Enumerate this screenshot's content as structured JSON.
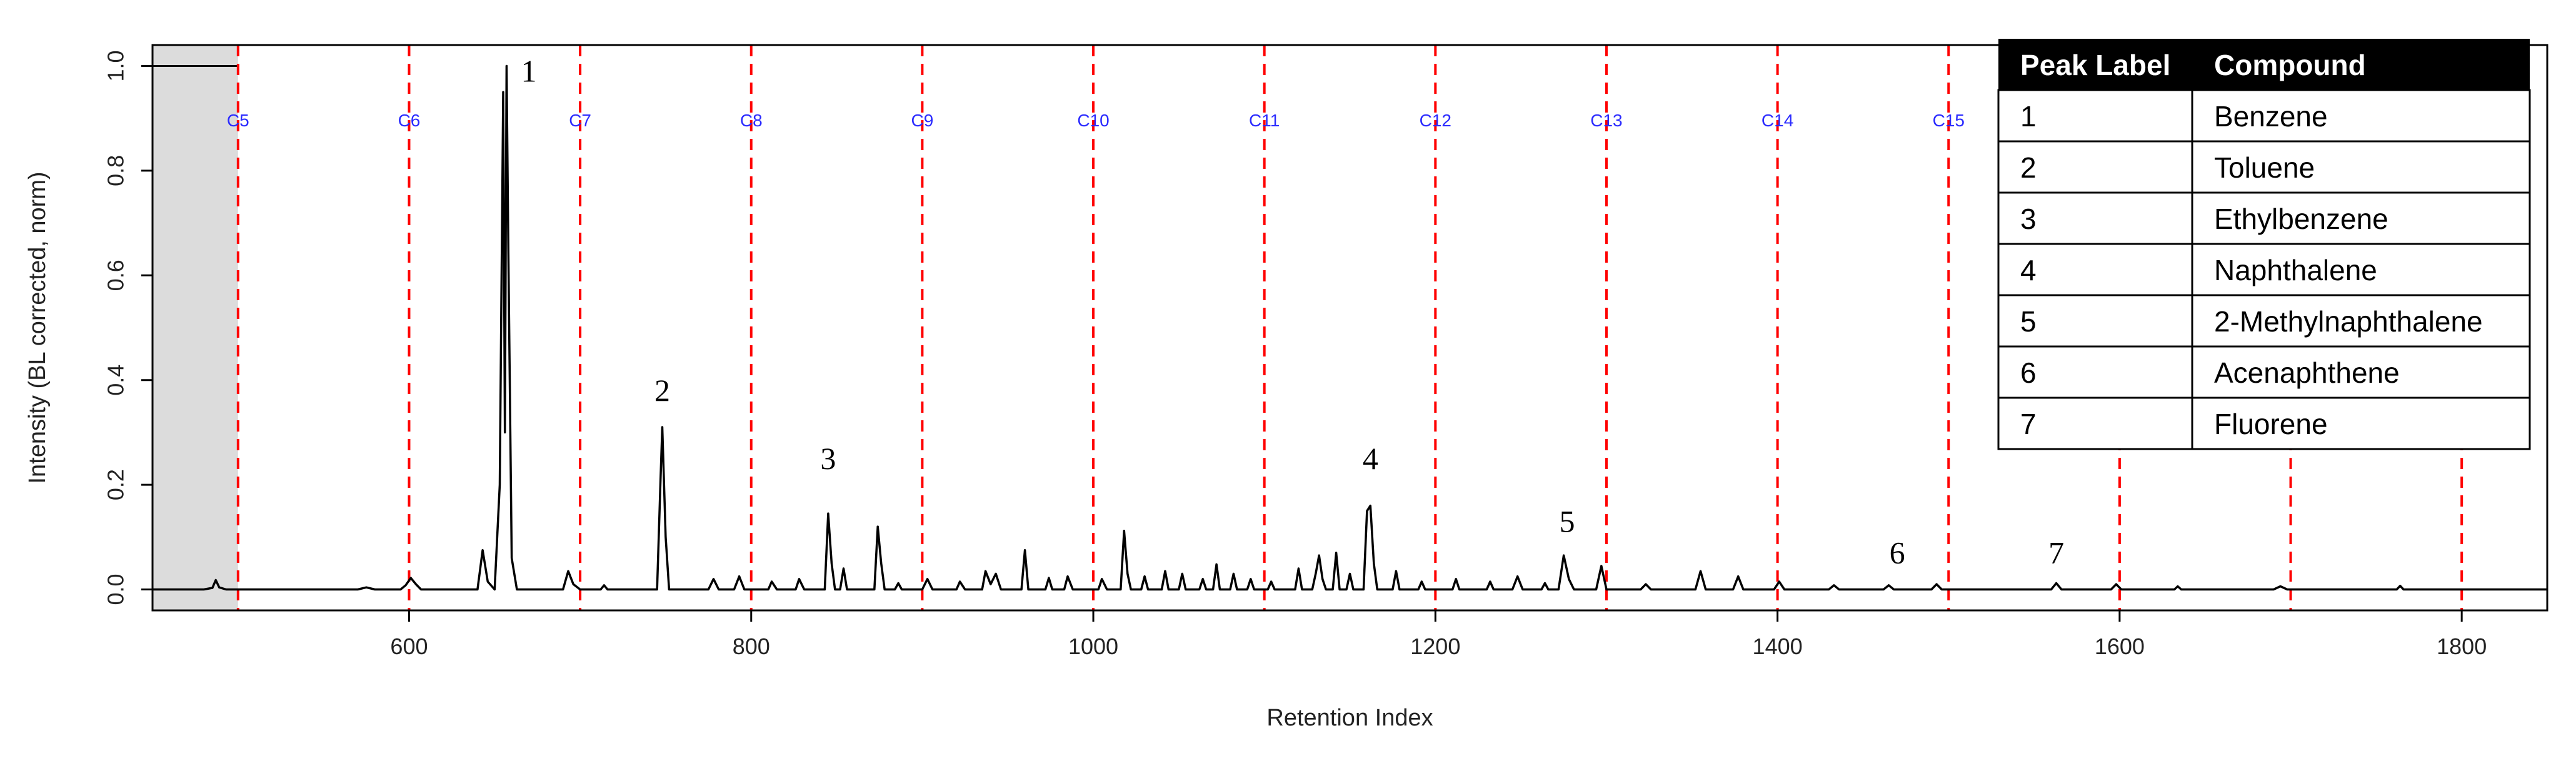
{
  "chart_data": {
    "type": "line",
    "title": "",
    "xlabel": "Retention Index",
    "ylabel": "Intensity (BL corrected, norm)",
    "xlim": [
      450,
      1850
    ],
    "ylim": [
      -0.04,
      1.04
    ],
    "x_ticks": [
      "600",
      "800",
      "1000",
      "1200",
      "1400",
      "1600",
      "1800"
    ],
    "x_tick_values": [
      600,
      800,
      1000,
      1200,
      1400,
      1600,
      1800
    ],
    "y_ticks": [
      "0.0",
      "0.2",
      "0.4",
      "0.6",
      "0.8",
      "1.0"
    ],
    "y_tick_values": [
      0.0,
      0.2,
      0.4,
      0.6,
      0.8,
      1.0
    ],
    "grid": false,
    "shaded_region": {
      "from": 450,
      "to": 500,
      "color": "#dcdcdc"
    },
    "alkane_markers": [
      {
        "label": "C5",
        "x": 500
      },
      {
        "label": "C6",
        "x": 600
      },
      {
        "label": "C7",
        "x": 700
      },
      {
        "label": "C8",
        "x": 800
      },
      {
        "label": "C9",
        "x": 900
      },
      {
        "label": "C10",
        "x": 1000
      },
      {
        "label": "C11",
        "x": 1100
      },
      {
        "label": "C12",
        "x": 1200
      },
      {
        "label": "C13",
        "x": 1300
      },
      {
        "label": "C14",
        "x": 1400
      },
      {
        "label": "C15",
        "x": 1500
      },
      {
        "label": "",
        "x": 1600
      },
      {
        "label": "",
        "x": 1700
      },
      {
        "label": "",
        "x": 1800
      }
    ],
    "marker_color": "#ff0000",
    "series": [
      {
        "color": "#000000",
        "points": [
          [
            450,
            0.0
          ],
          [
            480,
            0.0
          ],
          [
            485,
            0.003
          ],
          [
            487,
            0.018
          ],
          [
            489,
            0.004
          ],
          [
            493,
            0.0
          ],
          [
            570,
            0.0
          ],
          [
            575,
            0.004
          ],
          [
            580,
            0.0
          ],
          [
            595,
            0.0
          ],
          [
            598,
            0.008
          ],
          [
            601,
            0.022
          ],
          [
            604,
            0.01
          ],
          [
            607,
            0.0
          ],
          [
            640,
            0.0
          ],
          [
            643,
            0.075
          ],
          [
            646,
            0.015
          ],
          [
            650,
            0.0
          ],
          [
            653,
            0.2
          ],
          [
            655,
            0.95
          ],
          [
            656,
            0.3
          ],
          [
            657,
            1.0
          ],
          [
            658,
            0.65
          ],
          [
            660,
            0.06
          ],
          [
            663,
            0.0
          ],
          [
            690,
            0.0
          ],
          [
            693,
            0.035
          ],
          [
            696,
            0.01
          ],
          [
            700,
            0.0
          ],
          [
            712,
            0.0
          ],
          [
            714,
            0.008
          ],
          [
            716,
            0.0
          ],
          [
            745,
            0.0
          ],
          [
            747,
            0.21
          ],
          [
            748,
            0.31
          ],
          [
            750,
            0.1
          ],
          [
            752,
            0.0
          ],
          [
            775,
            0.0
          ],
          [
            778,
            0.02
          ],
          [
            781,
            0.0
          ],
          [
            790,
            0.0
          ],
          [
            793,
            0.025
          ],
          [
            796,
            0.0
          ],
          [
            810,
            0.0
          ],
          [
            812,
            0.015
          ],
          [
            815,
            0.0
          ],
          [
            826,
            0.0
          ],
          [
            828,
            0.02
          ],
          [
            831,
            0.0
          ],
          [
            843,
            0.0
          ],
          [
            845,
            0.145
          ],
          [
            847,
            0.05
          ],
          [
            849,
            0.0
          ],
          [
            852,
            0.0
          ],
          [
            854,
            0.04
          ],
          [
            856,
            0.0
          ],
          [
            872,
            0.0
          ],
          [
            874,
            0.12
          ],
          [
            876,
            0.05
          ],
          [
            878,
            0.0
          ],
          [
            884,
            0.0
          ],
          [
            886,
            0.012
          ],
          [
            888,
            0.0
          ],
          [
            900,
            0.0
          ],
          [
            903,
            0.02
          ],
          [
            906,
            0.0
          ],
          [
            920,
            0.0
          ],
          [
            922,
            0.015
          ],
          [
            925,
            0.0
          ],
          [
            935,
            0.0
          ],
          [
            937,
            0.035
          ],
          [
            940,
            0.01
          ],
          [
            943,
            0.03
          ],
          [
            946,
            0.0
          ],
          [
            958,
            0.0
          ],
          [
            960,
            0.075
          ],
          [
            962,
            0.0
          ],
          [
            972,
            0.0
          ],
          [
            974,
            0.022
          ],
          [
            976,
            0.0
          ],
          [
            983,
            0.0
          ],
          [
            985,
            0.025
          ],
          [
            988,
            0.0
          ],
          [
            1003,
            0.0
          ],
          [
            1005,
            0.02
          ],
          [
            1008,
            0.0
          ],
          [
            1016,
            0.0
          ],
          [
            1018,
            0.112
          ],
          [
            1020,
            0.03
          ],
          [
            1022,
            0.0
          ],
          [
            1028,
            0.0
          ],
          [
            1030,
            0.025
          ],
          [
            1032,
            0.0
          ],
          [
            1040,
            0.0
          ],
          [
            1042,
            0.035
          ],
          [
            1044,
            0.0
          ],
          [
            1050,
            0.0
          ],
          [
            1052,
            0.03
          ],
          [
            1054,
            0.0
          ],
          [
            1062,
            0.0
          ],
          [
            1064,
            0.02
          ],
          [
            1066,
            0.0
          ],
          [
            1070,
            0.0
          ],
          [
            1072,
            0.048
          ],
          [
            1074,
            0.0
          ],
          [
            1080,
            0.0
          ],
          [
            1082,
            0.03
          ],
          [
            1084,
            0.0
          ],
          [
            1090,
            0.0
          ],
          [
            1092,
            0.02
          ],
          [
            1094,
            0.0
          ],
          [
            1102,
            0.0
          ],
          [
            1104,
            0.015
          ],
          [
            1106,
            0.0
          ],
          [
            1118,
            0.0
          ],
          [
            1120,
            0.04
          ],
          [
            1122,
            0.0
          ],
          [
            1128,
            0.0
          ],
          [
            1130,
            0.03
          ],
          [
            1132,
            0.065
          ],
          [
            1134,
            0.02
          ],
          [
            1136,
            0.0
          ],
          [
            1140,
            0.0
          ],
          [
            1142,
            0.07
          ],
          [
            1144,
            0.0
          ],
          [
            1148,
            0.0
          ],
          [
            1150,
            0.03
          ],
          [
            1152,
            0.0
          ],
          [
            1158,
            0.0
          ],
          [
            1160,
            0.15
          ],
          [
            1162,
            0.16
          ],
          [
            1164,
            0.05
          ],
          [
            1166,
            0.0
          ],
          [
            1175,
            0.0
          ],
          [
            1177,
            0.035
          ],
          [
            1179,
            0.0
          ],
          [
            1190,
            0.0
          ],
          [
            1192,
            0.015
          ],
          [
            1194,
            0.0
          ],
          [
            1210,
            0.0
          ],
          [
            1212,
            0.02
          ],
          [
            1214,
            0.0
          ],
          [
            1230,
            0.0
          ],
          [
            1232,
            0.015
          ],
          [
            1234,
            0.0
          ],
          [
            1245,
            0.0
          ],
          [
            1248,
            0.025
          ],
          [
            1251,
            0.0
          ],
          [
            1262,
            0.0
          ],
          [
            1264,
            0.012
          ],
          [
            1266,
            0.0
          ],
          [
            1272,
            0.0
          ],
          [
            1275,
            0.065
          ],
          [
            1278,
            0.02
          ],
          [
            1281,
            0.0
          ],
          [
            1294,
            0.0
          ],
          [
            1297,
            0.045
          ],
          [
            1300,
            0.0
          ],
          [
            1320,
            0.0
          ],
          [
            1323,
            0.01
          ],
          [
            1326,
            0.0
          ],
          [
            1352,
            0.0
          ],
          [
            1355,
            0.035
          ],
          [
            1358,
            0.0
          ],
          [
            1374,
            0.0
          ],
          [
            1377,
            0.025
          ],
          [
            1380,
            0.0
          ],
          [
            1398,
            0.0
          ],
          [
            1401,
            0.015
          ],
          [
            1404,
            0.0
          ],
          [
            1430,
            0.0
          ],
          [
            1433,
            0.008
          ],
          [
            1436,
            0.0
          ],
          [
            1462,
            0.0
          ],
          [
            1465,
            0.008
          ],
          [
            1468,
            0.0
          ],
          [
            1490,
            0.0
          ],
          [
            1493,
            0.01
          ],
          [
            1496,
            0.0
          ],
          [
            1560,
            0.0
          ],
          [
            1563,
            0.012
          ],
          [
            1566,
            0.0
          ],
          [
            1595,
            0.0
          ],
          [
            1598,
            0.01
          ],
          [
            1601,
            0.0
          ],
          [
            1632,
            0.0
          ],
          [
            1634,
            0.006
          ],
          [
            1636,
            0.0
          ],
          [
            1690,
            0.0
          ],
          [
            1694,
            0.006
          ],
          [
            1698,
            0.0
          ],
          [
            1762,
            0.0
          ],
          [
            1764,
            0.007
          ],
          [
            1766,
            0.0
          ],
          [
            1850,
            0.0
          ]
        ]
      }
    ],
    "peak_labels": [
      {
        "label": "1",
        "x": 670,
        "y": 0.97
      },
      {
        "label": "2",
        "x": 748,
        "y": 0.36
      },
      {
        "label": "3",
        "x": 845,
        "y": 0.23
      },
      {
        "label": "4",
        "x": 1162,
        "y": 0.23
      },
      {
        "label": "5",
        "x": 1277,
        "y": 0.11
      },
      {
        "label": "6",
        "x": 1470,
        "y": 0.05
      },
      {
        "label": "7",
        "x": 1563,
        "y": 0.05
      }
    ],
    "legend": {
      "placement": "top-right",
      "headers": [
        "Peak Label",
        "Compound"
      ],
      "rows": [
        [
          "1",
          "Benzene"
        ],
        [
          "2",
          "Toluene"
        ],
        [
          "3",
          "Ethylbenzene"
        ],
        [
          "4",
          "Naphthalene"
        ],
        [
          "5",
          "2-Methylnaphthalene"
        ],
        [
          "6",
          "Acenaphthene"
        ],
        [
          "7",
          "Fluorene"
        ]
      ]
    }
  }
}
